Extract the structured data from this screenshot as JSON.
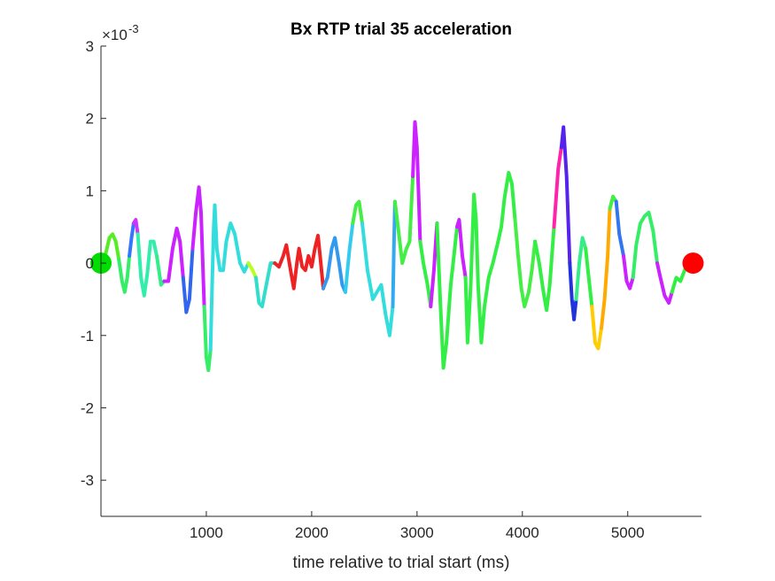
{
  "chart_data": {
    "type": "line",
    "title": "Bx  RTP trial 35 acceleration",
    "xlabel": "time relative to trial start (ms)",
    "ylabel": "",
    "exponent_label": "×10",
    "exponent_power": "-3",
    "xlim": [
      0,
      5700
    ],
    "ylim": [
      -3.5,
      3
    ],
    "x_ticks": [
      1000,
      2000,
      3000,
      4000,
      5000
    ],
    "y_ticks": [
      -3,
      -2,
      -1,
      0,
      1,
      2,
      3
    ],
    "start_marker": {
      "x": 0,
      "y": 0,
      "color": "#00dd00"
    },
    "end_marker": {
      "x": 5620,
      "y": 0,
      "color": "#ff0000"
    },
    "series": [
      {
        "color": "#55ee22",
        "points": [
          [
            0,
            0
          ],
          [
            40,
            0.1
          ],
          [
            80,
            0.35
          ],
          [
            110,
            0.4
          ],
          [
            140,
            0.3
          ],
          [
            170,
            0.05
          ]
        ]
      },
      {
        "color": "#33ee66",
        "points": [
          [
            170,
            0.05
          ],
          [
            200,
            -0.25
          ],
          [
            225,
            -0.4
          ],
          [
            250,
            -0.2
          ],
          [
            270,
            0.1
          ]
        ]
      },
      {
        "color": "#3377ff",
        "points": [
          [
            270,
            0.1
          ],
          [
            290,
            0.35
          ],
          [
            310,
            0.55
          ]
        ]
      },
      {
        "color": "#cc33ff",
        "points": [
          [
            310,
            0.55
          ],
          [
            330,
            0.6
          ],
          [
            350,
            0.4
          ]
        ]
      },
      {
        "color": "#33eeaa",
        "points": [
          [
            350,
            0.4
          ],
          [
            380,
            -0.2
          ],
          [
            410,
            -0.45
          ],
          [
            440,
            -0.15
          ],
          [
            470,
            0.3
          ],
          [
            500,
            0.3
          ],
          [
            530,
            0.1
          ]
        ]
      },
      {
        "color": "#33ee88",
        "points": [
          [
            530,
            0.1
          ],
          [
            570,
            -0.3
          ],
          [
            600,
            -0.25
          ]
        ]
      },
      {
        "color": "#cc22ff",
        "points": [
          [
            600,
            -0.25
          ],
          [
            640,
            -0.25
          ],
          [
            680,
            0.2
          ],
          [
            720,
            0.48
          ],
          [
            750,
            0.3
          ],
          [
            780,
            -0.2
          ]
        ]
      },
      {
        "color": "#3366ee",
        "points": [
          [
            780,
            -0.2
          ],
          [
            810,
            -0.68
          ],
          [
            840,
            -0.5
          ],
          [
            870,
            0.2
          ]
        ]
      },
      {
        "color": "#cc22ff",
        "points": [
          [
            870,
            0.2
          ],
          [
            900,
            0.7
          ],
          [
            930,
            1.05
          ],
          [
            950,
            0.7
          ],
          [
            980,
            -0.6
          ]
        ]
      },
      {
        "color": "#33ee66",
        "points": [
          [
            980,
            -0.6
          ],
          [
            1000,
            -1.3
          ],
          [
            1020,
            -1.48
          ],
          [
            1040,
            -1.2
          ]
        ]
      },
      {
        "color": "#33dddd",
        "points": [
          [
            1040,
            -1.2
          ],
          [
            1055,
            -0.3
          ],
          [
            1070,
            0.5
          ],
          [
            1080,
            0.8
          ]
        ]
      },
      {
        "color": "#33dddd",
        "points": [
          [
            1080,
            0.8
          ],
          [
            1100,
            0.2
          ],
          [
            1130,
            -0.1
          ],
          [
            1160,
            -0.1
          ],
          [
            1190,
            0.3
          ],
          [
            1230,
            0.55
          ],
          [
            1270,
            0.4
          ],
          [
            1320,
            0
          ],
          [
            1360,
            -0.12
          ],
          [
            1400,
            0
          ]
        ]
      },
      {
        "color": "#bbff22",
        "points": [
          [
            1400,
            0
          ],
          [
            1440,
            -0.1
          ],
          [
            1470,
            -0.2
          ]
        ]
      },
      {
        "color": "#33ddcc",
        "points": [
          [
            1470,
            -0.2
          ],
          [
            1500,
            -0.55
          ],
          [
            1530,
            -0.6
          ],
          [
            1570,
            -0.3
          ],
          [
            1610,
            0
          ],
          [
            1650,
            0
          ]
        ]
      },
      {
        "color": "#ee2222",
        "points": [
          [
            1650,
            0
          ],
          [
            1690,
            -0.05
          ],
          [
            1730,
            0.1
          ],
          [
            1760,
            0.25
          ],
          [
            1800,
            -0.1
          ],
          [
            1830,
            -0.35
          ],
          [
            1860,
            0
          ],
          [
            1880,
            0.2
          ],
          [
            1910,
            -0.05
          ],
          [
            1940,
            -0.1
          ],
          [
            1970,
            0.1
          ],
          [
            2000,
            -0.05
          ],
          [
            2030,
            0.2
          ],
          [
            2060,
            0.38
          ],
          [
            2080,
            0.1
          ],
          [
            2110,
            -0.35
          ]
        ]
      },
      {
        "color": "#3399ee",
        "points": [
          [
            2110,
            -0.35
          ],
          [
            2150,
            -0.2
          ],
          [
            2190,
            0.2
          ],
          [
            2220,
            0.35
          ],
          [
            2260,
            0
          ],
          [
            2290,
            -0.3
          ],
          [
            2320,
            -0.4
          ]
        ]
      },
      {
        "color": "#33ccee",
        "points": [
          [
            2320,
            -0.4
          ],
          [
            2340,
            -0.1
          ],
          [
            2360,
            0.2
          ],
          [
            2390,
            0.55
          ]
        ]
      },
      {
        "color": "#44ee44",
        "points": [
          [
            2390,
            0.55
          ],
          [
            2420,
            0.8
          ],
          [
            2450,
            0.85
          ],
          [
            2480,
            0.55
          ]
        ]
      },
      {
        "color": "#33dddd",
        "points": [
          [
            2480,
            0.55
          ],
          [
            2530,
            -0.1
          ],
          [
            2580,
            -0.5
          ],
          [
            2620,
            -0.4
          ],
          [
            2660,
            -0.3
          ],
          [
            2700,
            -0.7
          ],
          [
            2740,
            -1.0
          ],
          [
            2770,
            -0.6
          ]
        ]
      },
      {
        "color": "#33aaee",
        "points": [
          [
            2770,
            -0.6
          ],
          [
            2780,
            0.2
          ],
          [
            2790,
            0.85
          ]
        ]
      },
      {
        "color": "#44ee44",
        "points": [
          [
            2790,
            0.85
          ],
          [
            2820,
            0.5
          ],
          [
            2860,
            0
          ],
          [
            2900,
            0.2
          ],
          [
            2930,
            0.3
          ],
          [
            2960,
            1.2
          ]
        ]
      },
      {
        "color": "#cc22ff",
        "points": [
          [
            2960,
            1.2
          ],
          [
            2980,
            1.95
          ],
          [
            3000,
            1.6
          ],
          [
            3030,
            0.3
          ]
        ]
      },
      {
        "color": "#33ee44",
        "points": [
          [
            3030,
            0.3
          ],
          [
            3060,
            0
          ],
          [
            3100,
            -0.3
          ],
          [
            3130,
            -0.6
          ]
        ]
      },
      {
        "color": "#cc22ff",
        "points": [
          [
            3130,
            -0.6
          ],
          [
            3160,
            -0.1
          ],
          [
            3190,
            0.55
          ]
        ]
      },
      {
        "color": "#33ee44",
        "points": [
          [
            3190,
            0.55
          ],
          [
            3220,
            -0.5
          ],
          [
            3250,
            -1.45
          ],
          [
            3280,
            -1.1
          ],
          [
            3320,
            -0.3
          ],
          [
            3350,
            0.1
          ],
          [
            3380,
            0.5
          ]
        ]
      },
      {
        "color": "#cc22ff",
        "points": [
          [
            3380,
            0.5
          ],
          [
            3400,
            0.6
          ],
          [
            3430,
            0.1
          ],
          [
            3460,
            -0.2
          ]
        ]
      },
      {
        "color": "#33ee44",
        "points": [
          [
            3460,
            -0.2
          ],
          [
            3480,
            -1.1
          ],
          [
            3510,
            -0.3
          ],
          [
            3540,
            0.95
          ],
          [
            3560,
            0.6
          ],
          [
            3580,
            -0.3
          ],
          [
            3610,
            -1.1
          ],
          [
            3640,
            -0.6
          ],
          [
            3680,
            -0.2
          ],
          [
            3720,
            0
          ],
          [
            3770,
            0.3
          ]
        ]
      },
      {
        "color": "#33ee44",
        "points": [
          [
            3770,
            0.3
          ],
          [
            3800,
            0.5
          ],
          [
            3830,
            0.9
          ],
          [
            3870,
            1.25
          ],
          [
            3900,
            1.1
          ],
          [
            3930,
            0.6
          ]
        ]
      },
      {
        "color": "#44ee44",
        "points": [
          [
            3930,
            0.6
          ],
          [
            3960,
            0.1
          ],
          [
            3990,
            -0.35
          ],
          [
            4020,
            -0.6
          ],
          [
            4060,
            -0.4
          ],
          [
            4090,
            -0.1
          ],
          [
            4120,
            0.3
          ]
        ]
      },
      {
        "color": "#33ee44",
        "points": [
          [
            4120,
            0.3
          ],
          [
            4160,
            0
          ],
          [
            4200,
            -0.4
          ],
          [
            4230,
            -0.65
          ],
          [
            4260,
            -0.3
          ],
          [
            4300,
            0.5
          ]
        ]
      },
      {
        "color": "#ff22aa",
        "points": [
          [
            4300,
            0.5
          ],
          [
            4340,
            1.3
          ],
          [
            4370,
            1.6
          ]
        ]
      },
      {
        "color": "#5522ee",
        "points": [
          [
            4370,
            1.6
          ],
          [
            4390,
            1.88
          ],
          [
            4420,
            1.2
          ],
          [
            4450,
            0
          ]
        ]
      },
      {
        "color": "#2233dd",
        "points": [
          [
            4450,
            0
          ],
          [
            4470,
            -0.5
          ],
          [
            4490,
            -0.78
          ],
          [
            4510,
            -0.5
          ]
        ]
      },
      {
        "color": "#33ee88",
        "points": [
          [
            4510,
            -0.5
          ],
          [
            4540,
            0
          ],
          [
            4570,
            0.35
          ],
          [
            4600,
            0.2
          ]
        ]
      },
      {
        "color": "#33ee44",
        "points": [
          [
            4600,
            0.2
          ],
          [
            4630,
            -0.2
          ],
          [
            4660,
            -0.6
          ]
        ]
      },
      {
        "color": "#ffcc00",
        "points": [
          [
            4660,
            -0.6
          ],
          [
            4690,
            -1.1
          ],
          [
            4720,
            -1.18
          ],
          [
            4750,
            -0.9
          ]
        ]
      },
      {
        "color": "#ffaa00",
        "points": [
          [
            4750,
            -0.9
          ],
          [
            4780,
            -0.5
          ],
          [
            4810,
            0.1
          ],
          [
            4830,
            0.75
          ]
        ]
      },
      {
        "color": "#44ee44",
        "points": [
          [
            4830,
            0.75
          ],
          [
            4860,
            0.92
          ],
          [
            4890,
            0.85
          ]
        ]
      },
      {
        "color": "#3377ee",
        "points": [
          [
            4890,
            0.85
          ],
          [
            4920,
            0.4
          ],
          [
            4960,
            0.1
          ]
        ]
      },
      {
        "color": "#cc22ff",
        "points": [
          [
            4960,
            0.1
          ],
          [
            4990,
            -0.25
          ],
          [
            5020,
            -0.35
          ],
          [
            5050,
            -0.2
          ]
        ]
      },
      {
        "color": "#33ee66",
        "points": [
          [
            5050,
            -0.2
          ],
          [
            5080,
            0.25
          ],
          [
            5120,
            0.55
          ],
          [
            5160,
            0.65
          ],
          [
            5200,
            0.7
          ],
          [
            5240,
            0.45
          ],
          [
            5280,
            0
          ]
        ]
      },
      {
        "color": "#cc22ff",
        "points": [
          [
            5280,
            0
          ],
          [
            5310,
            -0.2
          ],
          [
            5350,
            -0.45
          ],
          [
            5390,
            -0.55
          ],
          [
            5420,
            -0.4
          ]
        ]
      },
      {
        "color": "#33ee44",
        "points": [
          [
            5420,
            -0.4
          ],
          [
            5460,
            -0.2
          ],
          [
            5500,
            -0.25
          ],
          [
            5540,
            -0.1
          ],
          [
            5580,
            0.1
          ],
          [
            5620,
            0
          ]
        ]
      }
    ]
  }
}
